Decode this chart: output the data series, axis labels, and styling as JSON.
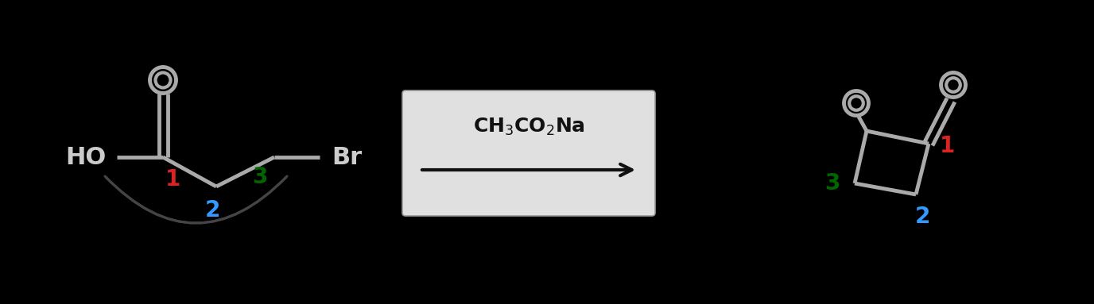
{
  "bg_color": "#000000",
  "bond_color": "#aaaaaa",
  "text_color": "#cccccc",
  "label_1_color": "#dd2222",
  "label_2_color": "#3399ff",
  "label_3_color": "#006600",
  "box_fill": "#e0e0e0",
  "box_edge": "#999999",
  "arrow_color": "#333333",
  "curved_arrow_color": "#444444",
  "reagent_fontsize": 18,
  "number_fontsize": 20,
  "bond_lw": 3.5,
  "text_fontsize": 22
}
